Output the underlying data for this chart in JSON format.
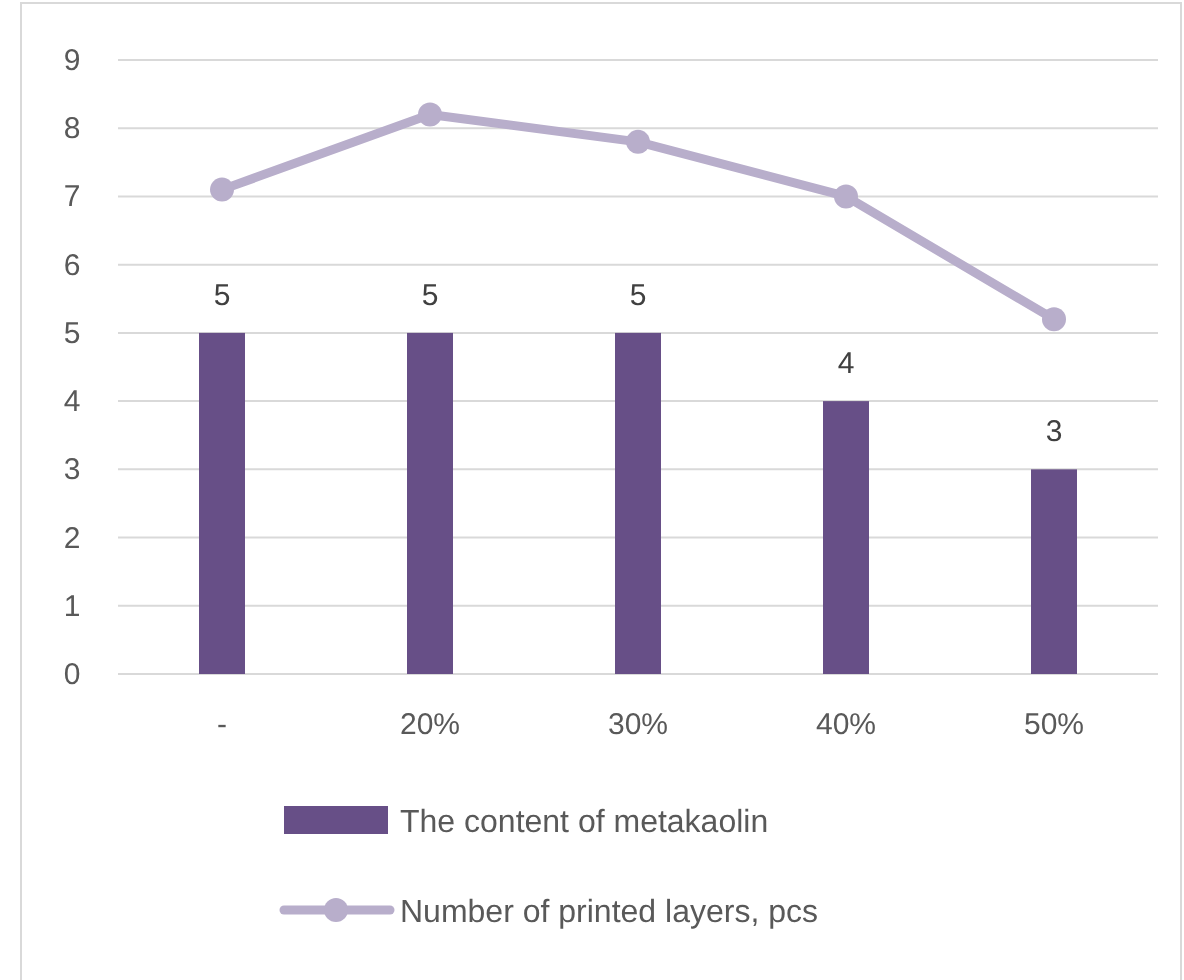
{
  "chart_data": {
    "type": "bar",
    "categories": [
      "-",
      "20%",
      "30%",
      "40%",
      "50%"
    ],
    "series": [
      {
        "name": "The content of metakaolin",
        "color": "#674f87",
        "values": [
          5,
          5,
          5,
          4,
          3
        ],
        "value_labels": [
          "5",
          "5",
          "5",
          "4",
          "3"
        ]
      },
      {
        "name": "Number of printed layers, pcs",
        "type": "line",
        "color": "#b8aecb",
        "values": [
          7.1,
          8.2,
          7.8,
          7.0,
          5.2
        ],
        "marker": "circle"
      }
    ],
    "ylim": [
      0,
      9
    ],
    "yticks": [
      0,
      1,
      2,
      3,
      4,
      5,
      6,
      7,
      8,
      9
    ],
    "grid": "y",
    "legend": "bottom"
  }
}
